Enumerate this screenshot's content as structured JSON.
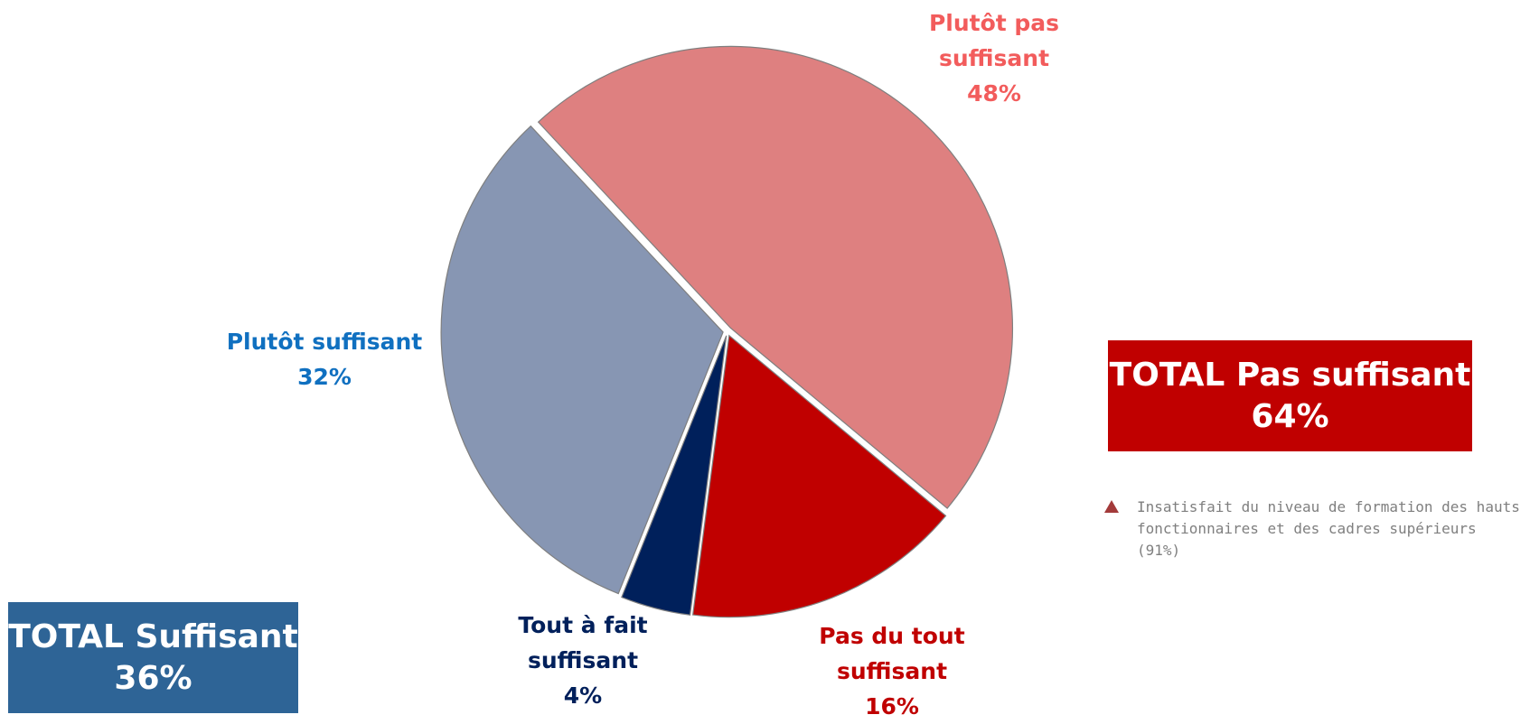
{
  "chart_data": {
    "type": "pie",
    "categories": [
      "Plutôt pas suffisant",
      "Pas du tout suffisant",
      "Tout à fait suffisant",
      "Plutôt suffisant"
    ],
    "values": [
      48,
      16,
      4,
      32
    ],
    "value_labels": [
      "48%",
      "16%",
      "4%",
      "32%"
    ],
    "colors": [
      "#de8080",
      "#c00000",
      "#00205b",
      "#8796b3"
    ],
    "label_colors": [
      "#f25c5c",
      "#c00000",
      "#00205b",
      "#1070c0"
    ],
    "totals": [
      {
        "label": "TOTAL Suffisant",
        "value": 36,
        "value_label": "36%",
        "color": "#2e6496"
      },
      {
        "label": "TOTAL Pas suffisant",
        "value": 64,
        "value_label": "64%",
        "color": "#c00000"
      }
    ],
    "note": "Insatisfait du niveau de formation des hauts fonctionnaires et des cadres supérieurs (91%)"
  }
}
